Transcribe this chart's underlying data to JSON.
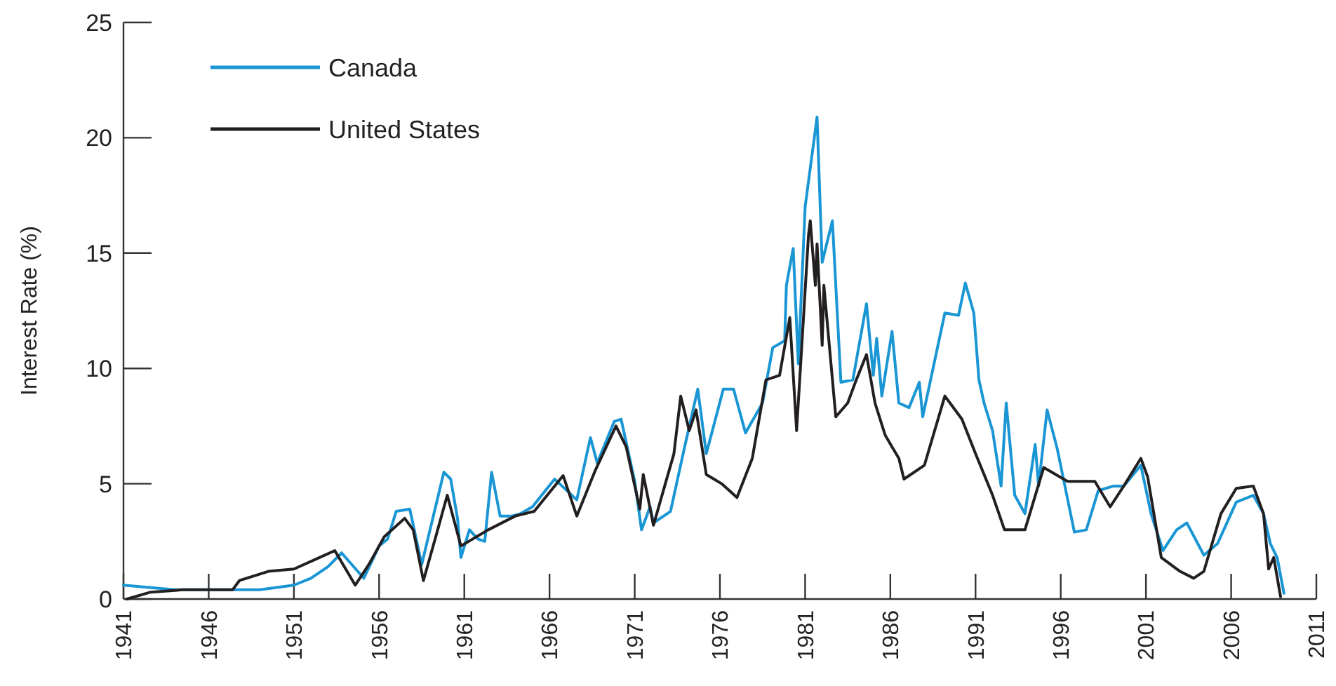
{
  "chart_data": {
    "type": "line",
    "ylabel": "Interest Rate (%)",
    "xlim": [
      1941,
      2011
    ],
    "xticks": [
      1941,
      1946,
      1951,
      1956,
      1961,
      1966,
      1971,
      1976,
      1981,
      1986,
      1991,
      1996,
      2001,
      2006,
      2011
    ],
    "ylim": [
      0,
      25
    ],
    "yticks": [
      0,
      5,
      10,
      15,
      20,
      25
    ],
    "grid": false,
    "legend": "top left",
    "marker": "none",
    "line_style": "solid",
    "series": [
      {
        "name": "Canada",
        "color": "#1a96d4",
        "x": [
          1941,
          1944,
          1946,
          1949,
          1950,
          1951,
          1952,
          1953,
          1953.8,
          1955.1,
          1956,
          1956.5,
          1957,
          1957.8,
          1958.5,
          1959.8,
          1960.2,
          1960.6,
          1960.8,
          1961.3,
          1961.8,
          1962.2,
          1962.6,
          1963.1,
          1963.8,
          1964.3,
          1965,
          1966.3,
          1967.6,
          1968.4,
          1968.8,
          1969.8,
          1970.2,
          1971,
          1971.4,
          1971.9,
          1972.1,
          1973.1,
          1973.9,
          1974.7,
          1975.2,
          1976.2,
          1976.8,
          1977.5,
          1978.5,
          1979.1,
          1979.8,
          1979.9,
          1980.3,
          1980.6,
          1981,
          1981.7,
          1982,
          1982.6,
          1983.1,
          1983.8,
          1984.6,
          1985,
          1985.2,
          1985.5,
          1986.1,
          1986.5,
          1987.1,
          1987.7,
          1987.9,
          1989.2,
          1990,
          1990.4,
          1990.9,
          1991.2,
          1991.5,
          1992,
          1992.5,
          1992.8,
          1993.3,
          1993.9,
          1994.5,
          1994.7,
          1995.2,
          1995.8,
          1996.8,
          1997.5,
          1998.2,
          1999.1,
          1999.7,
          2000.7,
          2001.3,
          2002,
          2002.8,
          2003.4,
          2004.4,
          2005.2,
          2006.3,
          2007.3,
          2007.9,
          2008.3,
          2008.7,
          2009.1
        ],
        "values": [
          0.6,
          0.4,
          0.4,
          0.4,
          0.5,
          0.6,
          0.9,
          1.4,
          2.0,
          0.9,
          2.3,
          2.6,
          3.8,
          3.9,
          1.5,
          5.5,
          5.2,
          3.5,
          1.8,
          3.0,
          2.6,
          2.5,
          5.5,
          3.6,
          3.6,
          3.7,
          4.0,
          5.2,
          4.3,
          7.0,
          5.9,
          7.7,
          7.8,
          5.1,
          3.0,
          4.0,
          3.3,
          3.8,
          6.5,
          9.1,
          6.3,
          9.1,
          9.1,
          7.2,
          8.5,
          10.9,
          11.2,
          13.6,
          15.2,
          10.2,
          17.0,
          20.9,
          14.6,
          16.4,
          9.4,
          9.5,
          12.8,
          9.7,
          11.3,
          8.8,
          11.6,
          8.5,
          8.3,
          9.4,
          7.9,
          12.4,
          12.3,
          13.7,
          12.4,
          9.5,
          8.5,
          7.3,
          4.9,
          8.5,
          4.5,
          3.7,
          6.7,
          4.9,
          8.2,
          6.5,
          2.9,
          3.0,
          4.7,
          4.9,
          4.9,
          5.8,
          3.7,
          2.1,
          3.0,
          3.3,
          1.9,
          2.4,
          4.2,
          4.5,
          3.7,
          2.4,
          1.8,
          0.25
        ]
      },
      {
        "name": "United States",
        "color": "#231f20",
        "x": [
          1941.2,
          1942.6,
          1944.5,
          1947.4,
          1947.8,
          1949.5,
          1951,
          1952.5,
          1953.4,
          1954.6,
          1955.4,
          1956.3,
          1957.5,
          1958,
          1958.6,
          1959.4,
          1960,
          1960.8,
          1962.4,
          1964,
          1965.1,
          1966.8,
          1967.6,
          1968.7,
          1969.9,
          1970.5,
          1971.3,
          1971.5,
          1972.1,
          1973.3,
          1973.7,
          1974.2,
          1974.6,
          1975.2,
          1976.1,
          1977,
          1977.9,
          1978.7,
          1979.5,
          1980.1,
          1980.5,
          1981.2,
          1981.3,
          1981.6,
          1981.7,
          1982,
          1982.1,
          1982.8,
          1983.5,
          1984,
          1984.6,
          1985.1,
          1985.7,
          1986.5,
          1986.8,
          1988,
          1989.2,
          1990.2,
          1991,
          1992,
          1992.7,
          1993.9,
          1995,
          1996.4,
          1998,
          1998.9,
          1999.7,
          2000.7,
          2001.1,
          2001.9,
          2003,
          2003.8,
          2004.4,
          2005.4,
          2006.3,
          2007.3,
          2007.9,
          2008.2,
          2008.5,
          2008.9
        ],
        "values": [
          0,
          0.3,
          0.4,
          0.4,
          0.8,
          1.2,
          1.3,
          1.8,
          2.1,
          0.6,
          1.5,
          2.7,
          3.5,
          3.0,
          0.8,
          2.9,
          4.5,
          2.3,
          3.0,
          3.6,
          3.8,
          5.35,
          3.6,
          5.6,
          7.5,
          6.6,
          3.9,
          5.4,
          3.2,
          6.3,
          8.8,
          7.3,
          8.2,
          5.4,
          5.0,
          4.4,
          6.1,
          9.5,
          9.7,
          12.2,
          7.3,
          15.8,
          16.4,
          13.6,
          15.4,
          11.0,
          13.6,
          7.9,
          8.5,
          9.5,
          10.6,
          8.5,
          7.1,
          6.1,
          5.2,
          5.8,
          8.8,
          7.8,
          6.3,
          4.5,
          3.0,
          3.0,
          5.7,
          5.1,
          5.1,
          4.0,
          4.9,
          6.1,
          5.3,
          1.8,
          1.2,
          0.9,
          1.2,
          3.7,
          4.8,
          4.9,
          3.7,
          1.3,
          1.8,
          0.1
        ]
      }
    ]
  }
}
